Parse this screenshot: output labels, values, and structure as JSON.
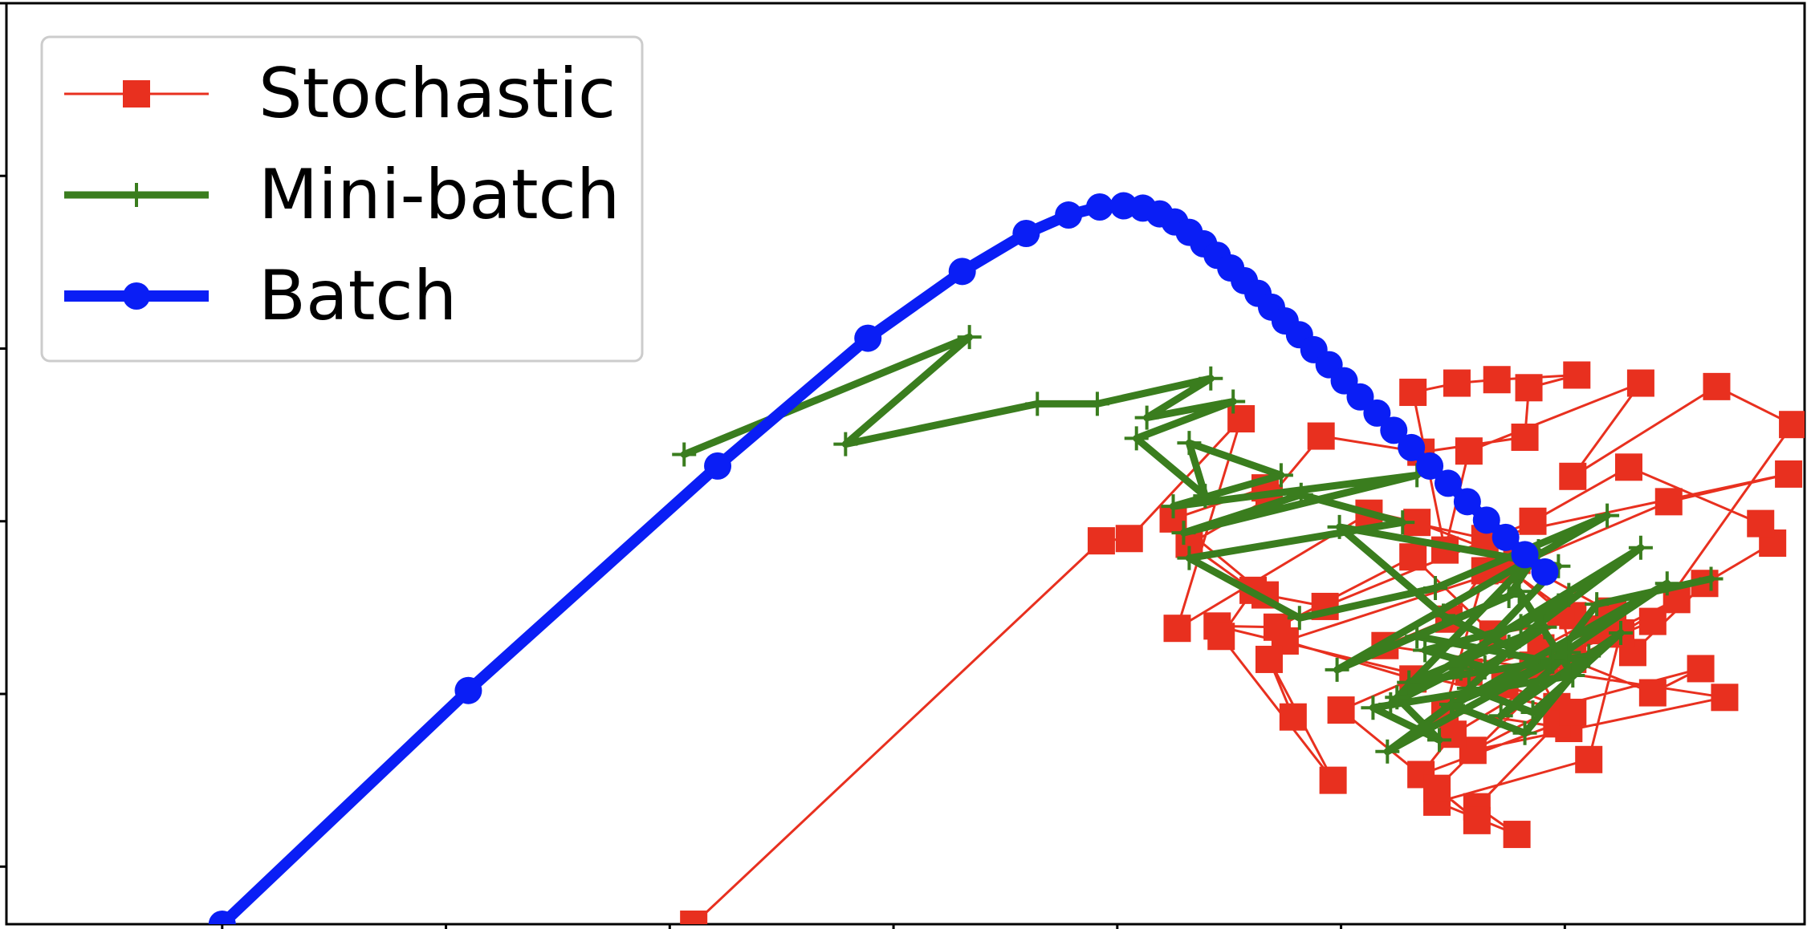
{
  "colors": {
    "stochastic": "#e8301f",
    "minibatch": "#3a7d1e",
    "batch": "#0a1ef5",
    "axes": "#000000",
    "legend_border": "#cccccc"
  },
  "legend": {
    "items": [
      {
        "label": "Stochastic",
        "series": "stochastic",
        "marker": "square"
      },
      {
        "label": "Mini-batch",
        "series": "minibatch",
        "marker": "plus"
      },
      {
        "label": "Batch",
        "series": "batch",
        "marker": "circle"
      }
    ],
    "placement": "top-left"
  },
  "chart_data": {
    "type": "line",
    "title": "",
    "xlabel": "",
    "ylabel": "",
    "xlim": [
      0,
      2250
    ],
    "ylim": [
      0,
      800
    ],
    "grid": false,
    "tick_labels_visible": false,
    "series": [
      {
        "name": "Stochastic",
        "key": "stochastic",
        "marker": "square",
        "x": [
          860,
          1370,
          1405,
          1545,
          1465,
          1705,
          1850,
          2230,
          2080,
          1880,
          1960,
          1830,
          1990,
          2035,
          2125,
          2210,
          2195,
          2030,
          1910,
          1650,
          1575,
          1460,
          1575,
          1765,
          1890,
          2005,
          1920,
          2060,
          2120,
          1940,
          1835,
          2150,
          1725,
          1805,
          1850,
          1800,
          1955,
          1910,
          2020,
          1980,
          1790,
          1890,
          1840,
          1940,
          1770,
          1810,
          2090,
          1875,
          1960,
          1515,
          1590,
          1760,
          1860,
          2010,
          1790,
          1840,
          1670,
          1760,
          1600,
          1880,
          1945,
          1960,
          2020,
          2060,
          2235,
          2140,
          1960,
          2045,
          1830,
          1800,
          1760,
          1815,
          1865,
          1965,
          1905,
          1900,
          1770,
          1645,
          1580,
          1480,
          1560,
          1520,
          1660,
          1580,
          1610
        ],
        "y": [
          0,
          333,
          335,
          439,
          257,
          357,
          335,
          391,
          367,
          308,
          268,
          219,
          255,
          236,
          296,
          331,
          348,
          397,
          350,
          276,
          286,
          352,
          379,
          349,
          316,
          272,
          240,
          201,
          222,
          189,
          151,
          197,
          242,
          265,
          307,
          186,
          170,
          225,
          253,
          143,
          106,
          78,
          102,
          174,
          130,
          165,
          282,
          208,
          184,
          259,
          258,
          319,
          252,
          270,
          118,
          90,
          186,
          213,
          246,
          309,
          271,
          230,
          252,
          263,
          434,
          467,
          389,
          470,
          411,
          325,
          462,
          470,
          473,
          477,
          466,
          423,
          410,
          424,
          370,
          330,
          290,
          250,
          125,
          230,
          180
        ]
      },
      {
        "name": "Mini-batch",
        "key": "minibatch",
        "marker": "plus",
        "x": [
          848,
          1205,
          1050,
          1290,
          1365,
          1507,
          1427,
          1535,
          1414,
          1500,
          1480,
          1595,
          1460,
          1765,
          1473,
          1620,
          1747,
          1480,
          1618,
          1788,
          2003,
          1665,
          1880,
          1917,
          1732,
          1820,
          1942,
          1668,
          1798,
          1880,
          2045,
          1740,
          1793,
          1710,
          1960,
          1893,
          1765,
          1932,
          2078,
          1810,
          1900,
          1980,
          1755,
          1925,
          1850,
          1775,
          1895,
          1955,
          1830,
          1910,
          2020,
          1870,
          1955,
          1728,
          1808,
          1935,
          1990,
          2133
        ],
        "y": [
          408,
          510,
          417,
          452,
          452,
          474,
          440,
          454,
          422,
          372,
          418,
          390,
          363,
          390,
          340,
          373,
          349,
          318,
          266,
          292,
          355,
          221,
          285,
          324,
          191,
          222,
          311,
          345,
          268,
          241,
          327,
          197,
          160,
          188,
          216,
          289,
          250,
          228,
          296,
          190,
          166,
          233,
          210,
          258,
          223,
          238,
          259,
          286,
          205,
          184,
          253,
          181,
          236,
          150,
          191,
          228,
          278,
          300
        ]
      },
      {
        "name": "Batch",
        "key": "batch",
        "marker": "circle",
        "x": [
          270,
          578,
          890,
          1078,
          1196,
          1276,
          1329,
          1368,
          1398,
          1422,
          1443,
          1462,
          1480,
          1498,
          1515,
          1532,
          1549,
          1566,
          1583,
          1600,
          1618,
          1636,
          1655,
          1674,
          1694,
          1715,
          1736,
          1758,
          1781,
          1804,
          1828,
          1852,
          1876,
          1900,
          1925
        ],
        "y": [
          0,
          203,
          398,
          509,
          567,
          600,
          616,
          623,
          624,
          622,
          617,
          610,
          601,
          591,
          581,
          570,
          559,
          548,
          536,
          524,
          512,
          499,
          486,
          472,
          458,
          444,
          429,
          414,
          398,
          383,
          367,
          351,
          336,
          321,
          306
        ]
      }
    ]
  }
}
